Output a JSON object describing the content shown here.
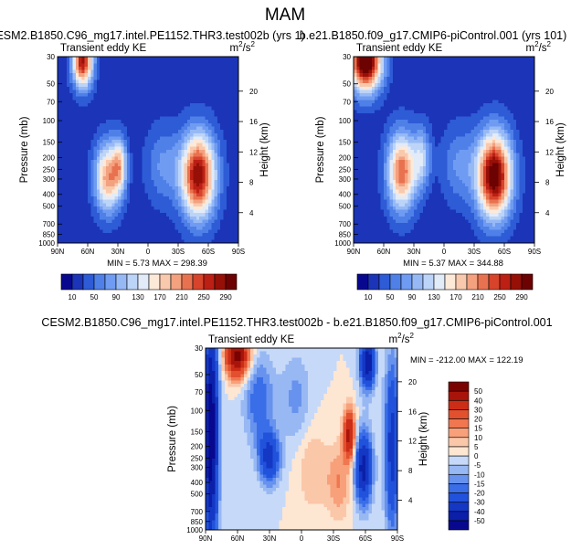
{
  "figure": {
    "title": "MAM",
    "diff_title": "CESM2.B1850.C96_mg17.intel.PE1152.THR3.test002b - b.e21.B1850.f09_g17.CMIP6-piControl.001"
  },
  "chart_data": [
    {
      "type": "heatmap",
      "title": "CESM2.B1850.C96_mg17.intel.PE1152.THR3.test002b (yrs 1)",
      "subtitle_left": "Transient eddy KE",
      "units": "m",
      "units_sup": "2",
      "units_mid": "/s",
      "units_sup2": "2",
      "xlabel": "",
      "ylabel": "Pressure (mb)",
      "ylabel_right": "Height (km)",
      "x_tick_labels": [
        "90N",
        "60N",
        "30N",
        "0",
        "30S",
        "60S",
        "90S"
      ],
      "y_tick_labels": [
        "30",
        "50",
        "70",
        "100",
        "150",
        "200",
        "250",
        "300",
        "400",
        "500",
        "700",
        "850",
        "1000"
      ],
      "y_tick_values": [
        30,
        50,
        70,
        100,
        150,
        200,
        250,
        300,
        400,
        500,
        700,
        850,
        1000
      ],
      "right_tick_labels": [
        "20",
        "16",
        "12",
        "8",
        "4"
      ],
      "right_tick_values": [
        20,
        16,
        12,
        8,
        4
      ],
      "xlim": [
        90,
        -90
      ],
      "ylim_mb": [
        30,
        1000
      ],
      "min_label": "MIN =",
      "min_value": "5.73",
      "max_label": "MAX =",
      "max_value": "298.39",
      "features": [
        {
          "lat": 65,
          "p": 32,
          "amp": 260,
          "slat": 7,
          "slp": 0.35
        },
        {
          "lat": 40,
          "p": 290,
          "amp": 185,
          "slat": 9,
          "slp": 0.45
        },
        {
          "lat": 28,
          "p": 230,
          "amp": 120,
          "slat": 5,
          "slp": 0.35
        },
        {
          "lat": -50,
          "p": 280,
          "amp": 270,
          "slat": 12,
          "slp": 0.55
        },
        {
          "lat": -15,
          "p": 230,
          "amp": 55,
          "slat": 12,
          "slp": 0.5
        }
      ]
    },
    {
      "type": "heatmap",
      "title": "b.e21.B1850.f09_g17.CMIP6-piControl.001 (yrs 101)",
      "subtitle_left": "Transient eddy KE",
      "units": "m",
      "units_sup": "2",
      "units_mid": "/s",
      "units_sup2": "2",
      "xlabel": "",
      "ylabel": "Pressure (mb)",
      "ylabel_right": "Height (km)",
      "x_tick_labels": [
        "90N",
        "60N",
        "30N",
        "0",
        "30S",
        "60S",
        "90S"
      ],
      "y_tick_labels": [
        "30",
        "50",
        "70",
        "100",
        "150",
        "200",
        "250",
        "300",
        "400",
        "500",
        "700",
        "850",
        "1000"
      ],
      "y_tick_values": [
        30,
        50,
        70,
        100,
        150,
        200,
        250,
        300,
        400,
        500,
        700,
        850,
        1000
      ],
      "right_tick_labels": [
        "20",
        "16",
        "12",
        "8",
        "4"
      ],
      "right_tick_values": [
        20,
        16,
        12,
        8,
        4
      ],
      "xlim": [
        90,
        -90
      ],
      "ylim_mb": [
        30,
        1000
      ],
      "min_label": "MIN =",
      "min_value": "5.37",
      "max_label": "MAX =",
      "max_value": "344.88",
      "features": [
        {
          "lat": 78,
          "p": 32,
          "amp": 330,
          "slat": 11,
          "slp": 0.4
        },
        {
          "lat": 42,
          "p": 260,
          "amp": 210,
          "slat": 10,
          "slp": 0.5
        },
        {
          "lat": 22,
          "p": 200,
          "amp": 90,
          "slat": 6,
          "slp": 0.4
        },
        {
          "lat": -50,
          "p": 280,
          "amp": 300,
          "slat": 12,
          "slp": 0.55
        },
        {
          "lat": -15,
          "p": 230,
          "amp": 55,
          "slat": 12,
          "slp": 0.5
        }
      ]
    },
    {
      "type": "heatmap",
      "subtitle_left": "Transient eddy KE",
      "units": "m",
      "units_sup": "2",
      "units_mid": "/s",
      "units_sup2": "2",
      "xlabel": "",
      "ylabel": "Pressure (mb)",
      "ylabel_right": "Height (km)",
      "x_tick_labels": [
        "90N",
        "60N",
        "30N",
        "0",
        "30S",
        "60S",
        "90S"
      ],
      "y_tick_labels": [
        "30",
        "50",
        "70",
        "100",
        "150",
        "200",
        "250",
        "300",
        "400",
        "500",
        "700",
        "850",
        "1000"
      ],
      "y_tick_values": [
        30,
        50,
        70,
        100,
        150,
        200,
        250,
        300,
        400,
        500,
        700,
        850,
        1000
      ],
      "right_tick_labels": [
        "20",
        "16",
        "12",
        "8",
        "4"
      ],
      "right_tick_values": [
        20,
        16,
        12,
        8,
        4
      ],
      "xlim": [
        90,
        -90
      ],
      "ylim_mb": [
        30,
        1000
      ],
      "min_label": "MIN =",
      "min_value": "-212.00",
      "max_label": "MAX =",
      "max_value": "122.19",
      "features": [
        {
          "lat": 60,
          "p": 35,
          "amp": 55,
          "slat": 8,
          "slp": 0.3
        },
        {
          "lat": 85,
          "p": 150,
          "amp": -60,
          "slat": 5,
          "slp": 1.6
        },
        {
          "lat": 40,
          "p": 80,
          "amp": -20,
          "slat": 10,
          "slp": 0.6
        },
        {
          "lat": 30,
          "p": 250,
          "amp": -35,
          "slat": 7,
          "slp": 0.35
        },
        {
          "lat": -45,
          "p": 160,
          "amp": 45,
          "slat": 4,
          "slp": 0.35
        },
        {
          "lat": -35,
          "p": 400,
          "amp": 15,
          "slat": 8,
          "slp": 0.5
        },
        {
          "lat": -58,
          "p": 300,
          "amp": -45,
          "slat": 6,
          "slp": 0.5
        },
        {
          "lat": -62,
          "p": 40,
          "amp": -50,
          "slat": 5,
          "slp": 0.35
        },
        {
          "lat": 5,
          "p": 80,
          "amp": -12,
          "slat": 10,
          "slp": 0.6
        },
        {
          "lat": -10,
          "p": 300,
          "amp": 10,
          "slat": 10,
          "slp": 0.6
        },
        {
          "lat": -85,
          "p": 200,
          "amp": -35,
          "slat": 5,
          "slp": 1.2
        }
      ]
    }
  ],
  "colorbars": {
    "main": {
      "labels": [
        "10",
        "50",
        "90",
        "130",
        "170",
        "210",
        "250",
        "290"
      ],
      "levels": [
        10,
        30,
        50,
        70,
        90,
        110,
        130,
        150,
        170,
        190,
        210,
        230,
        250,
        270,
        290
      ],
      "colors": [
        "#08088f",
        "#1b34b8",
        "#2e5bd6",
        "#4f80e8",
        "#6f9cf2",
        "#96b9f6",
        "#bcd4f8",
        "#e2ebf8",
        "#fde9d8",
        "#f9c9ad",
        "#f3a17f",
        "#e8724f",
        "#d7442b",
        "#bc1f14",
        "#961007",
        "#6c0202"
      ]
    },
    "diff": {
      "labels": [
        "50",
        "40",
        "30",
        "20",
        "15",
        "10",
        "5",
        "0",
        "-5",
        "-10",
        "-15",
        "-20",
        "-30",
        "-40",
        "-50"
      ],
      "levels": [
        -50,
        -40,
        -30,
        -20,
        -15,
        -10,
        -5,
        0,
        5,
        10,
        15,
        20,
        30,
        40,
        50
      ],
      "colors": [
        "#08088f",
        "#0b1fa8",
        "#1437c4",
        "#2152dc",
        "#3a6ee8",
        "#6792ee",
        "#97b8f3",
        "#c6d9f8",
        "#fde6d2",
        "#fbc7a9",
        "#f7a07a",
        "#f0774f",
        "#e2502e",
        "#cc2d17",
        "#a9140a",
        "#7a0302"
      ]
    }
  }
}
